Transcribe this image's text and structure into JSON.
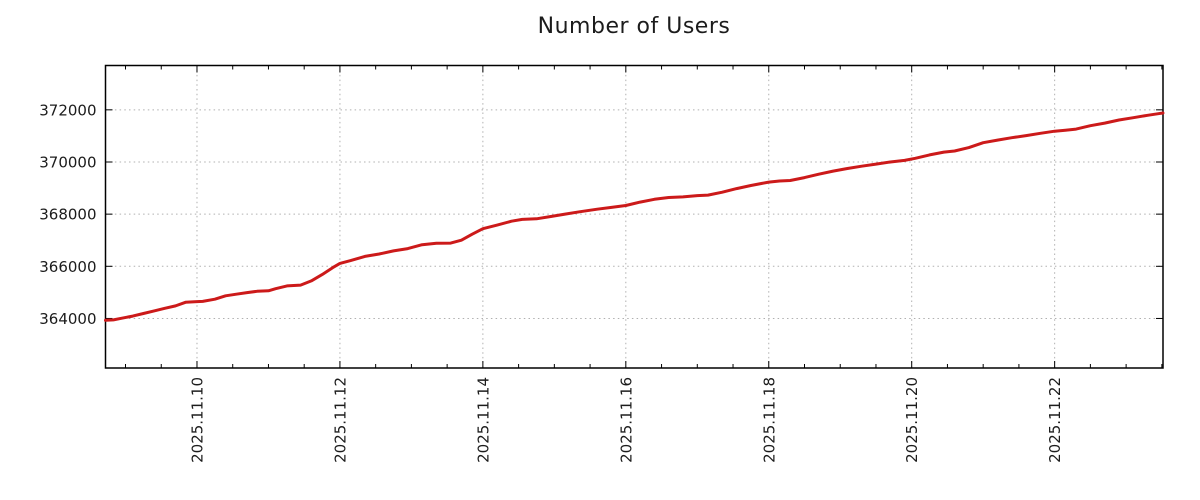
{
  "chart_data": {
    "type": "line",
    "title": "Number of Users",
    "legend": "none",
    "background_color": "#ffffff",
    "axis_color": "#000000",
    "text_color": "#1c1c1c",
    "grid": {
      "show": true,
      "color": "#b0b0b0",
      "style": "dotted"
    },
    "x_axis": {
      "unit": "day-of-november-2025",
      "xlim": [
        8.72,
        23.516
      ],
      "minor_step": 0.5,
      "major_ticks": [
        {
          "x": 10,
          "label": "2025.11.10"
        },
        {
          "x": 12,
          "label": "2025.11.12"
        },
        {
          "x": 14,
          "label": "2025.11.14"
        },
        {
          "x": 16,
          "label": "2025.11.16"
        },
        {
          "x": 18,
          "label": "2025.11.18"
        },
        {
          "x": 20,
          "label": "2025.11.20"
        },
        {
          "x": 22,
          "label": "2025.11.22"
        }
      ]
    },
    "y_axis": {
      "ylim": [
        362100,
        373700
      ],
      "major_ticks": [
        {
          "v": 364000,
          "label": "364000"
        },
        {
          "v": 366000,
          "label": "366000"
        },
        {
          "v": 368000,
          "label": "368000"
        },
        {
          "v": 370000,
          "label": "370000"
        },
        {
          "v": 372000,
          "label": "372000"
        }
      ]
    },
    "series": [
      {
        "name": "users",
        "color": "#cc1a1a",
        "points": [
          [
            8.72,
            363930
          ],
          [
            8.83,
            363945
          ],
          [
            8.95,
            364010
          ],
          [
            9.1,
            364090
          ],
          [
            9.25,
            364190
          ],
          [
            9.4,
            364290
          ],
          [
            9.55,
            364390
          ],
          [
            9.7,
            364480
          ],
          [
            9.84,
            364620
          ],
          [
            10.0,
            364645
          ],
          [
            10.08,
            364655
          ],
          [
            10.25,
            364740
          ],
          [
            10.4,
            364870
          ],
          [
            10.55,
            364930
          ],
          [
            10.7,
            364990
          ],
          [
            10.84,
            365040
          ],
          [
            11.0,
            365060
          ],
          [
            11.1,
            365140
          ],
          [
            11.26,
            365250
          ],
          [
            11.45,
            365280
          ],
          [
            11.6,
            365440
          ],
          [
            11.75,
            365680
          ],
          [
            11.9,
            365950
          ],
          [
            12.0,
            366110
          ],
          [
            12.15,
            366220
          ],
          [
            12.35,
            366380
          ],
          [
            12.55,
            366470
          ],
          [
            12.75,
            366590
          ],
          [
            12.95,
            366680
          ],
          [
            13.15,
            366830
          ],
          [
            13.35,
            366880
          ],
          [
            13.55,
            366890
          ],
          [
            13.7,
            367000
          ],
          [
            13.85,
            367230
          ],
          [
            14.0,
            367440
          ],
          [
            14.2,
            367580
          ],
          [
            14.4,
            367730
          ],
          [
            14.55,
            367800
          ],
          [
            14.75,
            367820
          ],
          [
            14.95,
            367910
          ],
          [
            15.15,
            368000
          ],
          [
            15.35,
            368090
          ],
          [
            15.6,
            368190
          ],
          [
            15.8,
            368260
          ],
          [
            16.0,
            368330
          ],
          [
            16.2,
            368460
          ],
          [
            16.4,
            368570
          ],
          [
            16.6,
            368640
          ],
          [
            16.8,
            368660
          ],
          [
            17.0,
            368710
          ],
          [
            17.15,
            368730
          ],
          [
            17.35,
            368840
          ],
          [
            17.55,
            368980
          ],
          [
            17.75,
            369100
          ],
          [
            18.0,
            369230
          ],
          [
            18.15,
            369270
          ],
          [
            18.3,
            369290
          ],
          [
            18.5,
            369400
          ],
          [
            18.7,
            369530
          ],
          [
            18.9,
            369650
          ],
          [
            19.1,
            369750
          ],
          [
            19.3,
            369840
          ],
          [
            19.5,
            369920
          ],
          [
            19.7,
            370000
          ],
          [
            19.9,
            370060
          ],
          [
            20.05,
            370140
          ],
          [
            20.25,
            370270
          ],
          [
            20.45,
            370380
          ],
          [
            20.6,
            370420
          ],
          [
            20.8,
            370550
          ],
          [
            21.0,
            370740
          ],
          [
            21.2,
            370840
          ],
          [
            21.4,
            370930
          ],
          [
            21.6,
            371010
          ],
          [
            21.8,
            371100
          ],
          [
            22.0,
            371180
          ],
          [
            22.15,
            371220
          ],
          [
            22.3,
            371260
          ],
          [
            22.5,
            371390
          ],
          [
            22.7,
            371490
          ],
          [
            22.9,
            371610
          ],
          [
            23.1,
            371700
          ],
          [
            23.3,
            371790
          ],
          [
            23.45,
            371850
          ],
          [
            23.516,
            371880
          ]
        ]
      }
    ]
  }
}
